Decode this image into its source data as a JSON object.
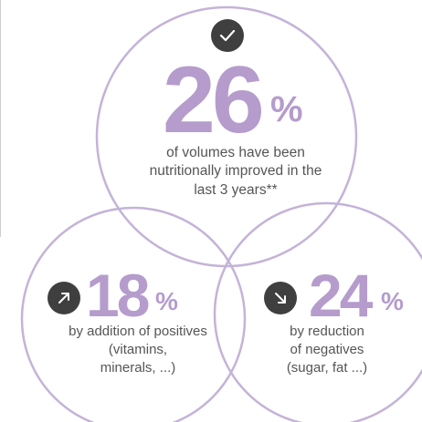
{
  "colors": {
    "accent": "#b59ccc",
    "circle_stroke": "#c4b3d8",
    "badge": "#3f3f3f",
    "text": "#555555"
  },
  "top": {
    "icon": "check-icon",
    "value": "26",
    "unit": "%",
    "lines": [
      "of volumes have been",
      "nutritionally improved in the",
      "last 3 years**"
    ]
  },
  "left": {
    "icon": "arrow-up-right-icon",
    "value": "18",
    "unit": "%",
    "lines": [
      "by addition of positives",
      "(vitamins,",
      "minerals, ...)"
    ]
  },
  "right": {
    "icon": "arrow-down-right-icon",
    "value": "24",
    "unit": "%",
    "lines": [
      "by reduction",
      "of negatives",
      "(sugar, fat ...)"
    ]
  }
}
